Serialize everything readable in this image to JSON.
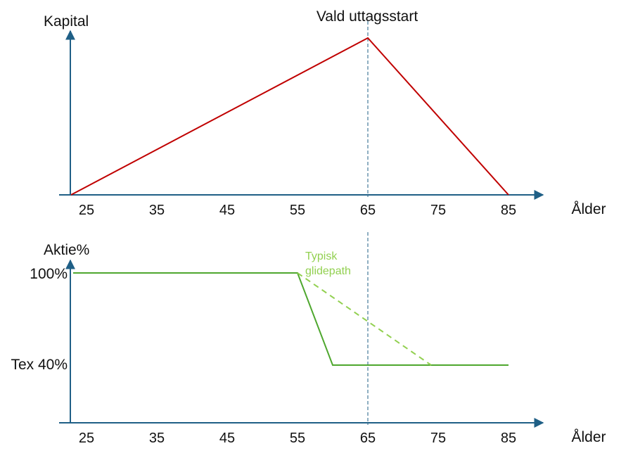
{
  "colors": {
    "axis": "#1f5f86",
    "capital_line": "#c00000",
    "equity_line": "#4ea72e",
    "glidepath_line": "#92d050",
    "marker_line": "#1f5f86"
  },
  "chart_data": [
    {
      "type": "line",
      "ylabel": "Kapital",
      "xlabel": "Ålder",
      "xticks": [
        25,
        35,
        45,
        55,
        65,
        75,
        85
      ],
      "xlim": [
        25,
        90
      ],
      "ylim": [
        0,
        1
      ],
      "series": [
        {
          "x": [
            25,
            65,
            85
          ],
          "y": [
            0,
            1,
            0
          ]
        }
      ],
      "marker": {
        "x": 65,
        "label": "Vald uttagsstart"
      }
    },
    {
      "type": "line",
      "ylabel": "Aktie%",
      "xlabel": "Ålder",
      "xticks": [
        25,
        35,
        45,
        55,
        65,
        75,
        85
      ],
      "yticks": [
        {
          "value": 100,
          "label": "100%"
        },
        {
          "value": 40,
          "label": "Tex 40%"
        }
      ],
      "xlim": [
        25,
        90
      ],
      "ylim": [
        0,
        110
      ],
      "series": [
        {
          "x": [
            25,
            55,
            60,
            85
          ],
          "y": [
            100,
            100,
            40,
            40
          ]
        },
        {
          "name": "Typisk glidepath",
          "style": "dashed",
          "x": [
            55,
            74
          ],
          "y": [
            100,
            40
          ]
        }
      ],
      "marker": {
        "x": 65
      }
    }
  ]
}
